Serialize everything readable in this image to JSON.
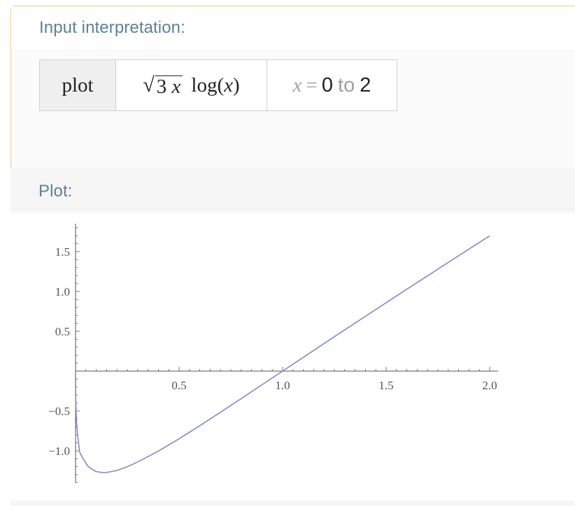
{
  "input_pod": {
    "title": "Input interpretation:",
    "command": "plot",
    "expression": {
      "radicand_coef": "3",
      "radicand_var": "x",
      "function": "log",
      "open_paren": "(",
      "argument": "x",
      "close_paren": ")"
    },
    "range": {
      "variable": "x",
      "equals": "=",
      "from": "0",
      "to_word": "to",
      "to": "2"
    }
  },
  "plot_pod": {
    "title": "Plot:"
  },
  "colors": {
    "curve": "#8787c5",
    "axis": "#555555",
    "pod_title": "#5b8397",
    "input_border": "#f2c98a"
  },
  "chart_data": {
    "type": "line",
    "title": "",
    "xlabel": "",
    "ylabel": "",
    "xlim": [
      0,
      2
    ],
    "ylim": [
      -1.4,
      1.85
    ],
    "grid": false,
    "x_ticks": [
      {
        "value": 0.5,
        "label": "0.5"
      },
      {
        "value": 1.0,
        "label": "1.0"
      },
      {
        "value": 1.5,
        "label": "1.5"
      },
      {
        "value": 2.0,
        "label": "2.0"
      }
    ],
    "y_ticks": [
      {
        "value": -1.0,
        "label": "−1.0"
      },
      {
        "value": -0.5,
        "label": "−0.5"
      },
      {
        "value": 0.5,
        "label": "0.5"
      },
      {
        "value": 1.0,
        "label": "1.0"
      },
      {
        "value": 1.5,
        "label": "1.5"
      }
    ],
    "series": [
      {
        "x": [
          0.0005,
          0.002,
          0.005,
          0.01,
          0.02,
          0.04,
          0.06,
          0.08,
          0.1,
          0.135,
          0.15,
          0.2,
          0.25,
          0.3,
          0.4,
          0.5,
          0.6,
          0.7,
          0.8,
          0.9,
          1.0,
          1.1,
          1.2,
          1.3,
          1.4,
          1.5,
          1.6,
          1.7,
          1.8,
          1.9,
          2.0
        ],
        "y": [
          -0.295,
          -0.481,
          -0.649,
          -0.798,
          -1.02,
          -1.115,
          -1.193,
          -1.233,
          -1.261,
          -1.275,
          -1.272,
          -1.247,
          -1.2,
          -1.141,
          -1.004,
          -0.849,
          -0.686,
          -0.516,
          -0.346,
          -0.172,
          0.0,
          0.173,
          0.346,
          0.518,
          0.688,
          0.858,
          1.028,
          1.196,
          1.364,
          1.531,
          1.698
        ]
      }
    ]
  }
}
